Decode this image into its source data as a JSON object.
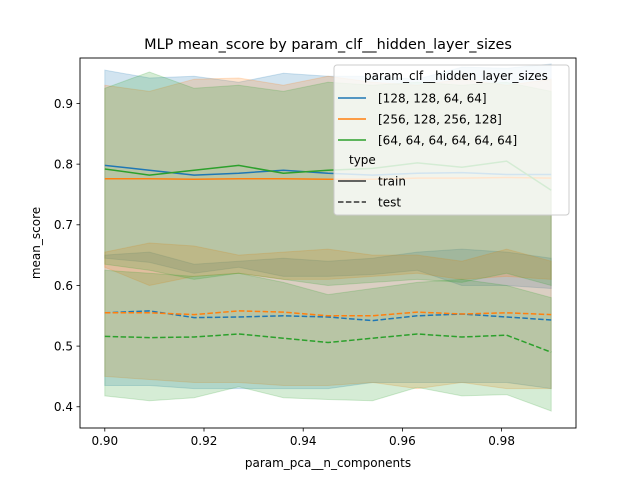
{
  "chart_data": {
    "type": "line",
    "title": "MLP mean_score by param_clf__hidden_layer_sizes",
    "xlabel": "param_pca__n_components",
    "ylabel": "mean_score",
    "xlim": [
      0.895,
      0.995
    ],
    "ylim": [
      0.365,
      0.975
    ],
    "x": [
      0.9,
      0.909,
      0.918,
      0.927,
      0.936,
      0.945,
      0.954,
      0.963,
      0.972,
      0.981,
      0.99
    ],
    "xticks": [
      0.9,
      0.92,
      0.94,
      0.96,
      0.98
    ],
    "xtick_labels": [
      "0.90",
      "0.92",
      "0.94",
      "0.96",
      "0.98"
    ],
    "yticks": [
      0.4,
      0.5,
      0.6,
      0.7,
      0.8,
      0.9
    ],
    "ytick_labels": [
      "0.4",
      "0.5",
      "0.6",
      "0.7",
      "0.8",
      "0.9"
    ],
    "grid": false,
    "legend": {
      "placement": "top-right",
      "hue_title": "param_clf__hidden_layer_sizes",
      "style_title": "type",
      "style_entries": [
        {
          "label": "train",
          "dash": "solid"
        },
        {
          "label": "test",
          "dash": "dashed"
        }
      ]
    },
    "series": [
      {
        "name": "[128, 128, 64, 64]",
        "color": "#1f77b4",
        "train": {
          "mean": [
            0.798,
            0.79,
            0.782,
            0.785,
            0.79,
            0.785,
            0.782,
            0.785,
            0.786,
            0.783,
            0.783
          ],
          "lower": [
            0.645,
            0.638,
            0.62,
            0.63,
            0.615,
            0.615,
            0.618,
            0.625,
            0.6,
            0.6,
            0.595
          ],
          "upper": [
            0.955,
            0.942,
            0.945,
            0.935,
            0.95,
            0.945,
            0.945,
            0.94,
            0.96,
            0.958,
            0.965
          ]
        },
        "test": {
          "mean": [
            0.555,
            0.558,
            0.547,
            0.548,
            0.55,
            0.548,
            0.542,
            0.55,
            0.553,
            0.548,
            0.543
          ],
          "lower": [
            0.435,
            0.435,
            0.43,
            0.43,
            0.43,
            0.43,
            0.44,
            0.44,
            0.44,
            0.44,
            0.43
          ],
          "upper": [
            0.65,
            0.655,
            0.635,
            0.64,
            0.645,
            0.64,
            0.645,
            0.655,
            0.66,
            0.655,
            0.645
          ]
        }
      },
      {
        "name": "[256, 128, 256, 128]",
        "color": "#ff7f0e",
        "train": {
          "mean": [
            0.776,
            0.776,
            0.775,
            0.776,
            0.776,
            0.775,
            0.775,
            0.777,
            0.777,
            0.778,
            0.777
          ],
          "lower": [
            0.63,
            0.6,
            0.615,
            0.62,
            0.61,
            0.61,
            0.615,
            0.62,
            0.61,
            0.615,
            0.61
          ],
          "upper": [
            0.93,
            0.92,
            0.94,
            0.942,
            0.93,
            0.945,
            0.935,
            0.93,
            0.94,
            0.93,
            0.94
          ]
        },
        "test": {
          "mean": [
            0.555,
            0.555,
            0.552,
            0.558,
            0.556,
            0.55,
            0.55,
            0.556,
            0.553,
            0.555,
            0.552
          ],
          "lower": [
            0.45,
            0.445,
            0.44,
            0.44,
            0.435,
            0.435,
            0.44,
            0.43,
            0.44,
            0.43,
            0.43
          ],
          "upper": [
            0.655,
            0.67,
            0.665,
            0.65,
            0.655,
            0.66,
            0.65,
            0.65,
            0.64,
            0.66,
            0.64
          ]
        }
      },
      {
        "name": "[64, 64, 64, 64, 64, 64]",
        "color": "#2ca02c",
        "train": {
          "mean": [
            0.792,
            0.782,
            0.79,
            0.798,
            0.785,
            0.79,
            0.793,
            0.802,
            0.795,
            0.805,
            0.757
          ],
          "lower": [
            0.635,
            0.625,
            0.61,
            0.62,
            0.61,
            0.6,
            0.605,
            0.61,
            0.605,
            0.62,
            0.6
          ],
          "upper": [
            0.925,
            0.952,
            0.925,
            0.93,
            0.92,
            0.935,
            0.93,
            0.935,
            0.93,
            0.935,
            0.92
          ]
        },
        "test": {
          "mean": [
            0.516,
            0.514,
            0.515,
            0.52,
            0.513,
            0.506,
            0.513,
            0.52,
            0.515,
            0.518,
            0.49
          ],
          "lower": [
            0.418,
            0.41,
            0.415,
            0.433,
            0.415,
            0.412,
            0.41,
            0.432,
            0.418,
            0.42,
            0.393
          ],
          "upper": [
            0.625,
            0.62,
            0.615,
            0.62,
            0.605,
            0.585,
            0.595,
            0.605,
            0.61,
            0.6,
            0.58
          ]
        }
      }
    ]
  }
}
